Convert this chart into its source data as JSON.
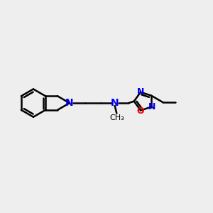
{
  "bg_color": "#eeeeee",
  "bond_color": "#000000",
  "N_color": "#0000ee",
  "O_color": "#ee0000",
  "bond_width": 1.8,
  "font_size": 9,
  "fig_width": 3.0,
  "fig_height": 3.0,
  "xlim": [
    0,
    12
  ],
  "ylim": [
    0,
    10
  ]
}
